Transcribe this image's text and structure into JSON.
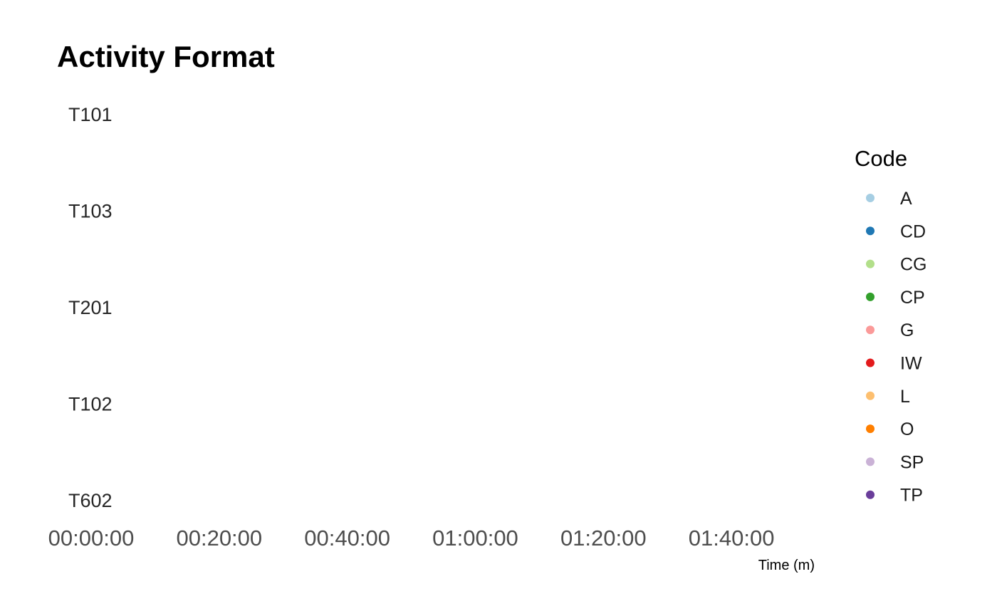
{
  "chart_data": {
    "type": "scatter",
    "title": "Activity Format",
    "xlabel": "Time (m)",
    "ylabel": "",
    "y_categories": [
      "T101",
      "T103",
      "T201",
      "T102",
      "T602"
    ],
    "x_ticks": [
      "00:00:00",
      "00:20:00",
      "00:40:00",
      "01:00:00",
      "01:20:00",
      "01:40:00"
    ],
    "xlim": [
      "00:00:00",
      "01:52:00"
    ],
    "grid": false,
    "legend_position": "right",
    "legend": {
      "title": "Code",
      "entries": [
        {
          "label": "A",
          "color": "#a6cee3"
        },
        {
          "label": "CD",
          "color": "#1f78b4"
        },
        {
          "label": "CG",
          "color": "#b2df8a"
        },
        {
          "label": "CP",
          "color": "#33a02c"
        },
        {
          "label": "G",
          "color": "#fb9a99"
        },
        {
          "label": "IW",
          "color": "#e31a1c"
        },
        {
          "label": "L",
          "color": "#fdbf6f"
        },
        {
          "label": "O",
          "color": "#ff7f00"
        },
        {
          "label": "SP",
          "color": "#cab2d6"
        },
        {
          "label": "TP",
          "color": "#6a3d9a"
        }
      ]
    },
    "series": []
  }
}
